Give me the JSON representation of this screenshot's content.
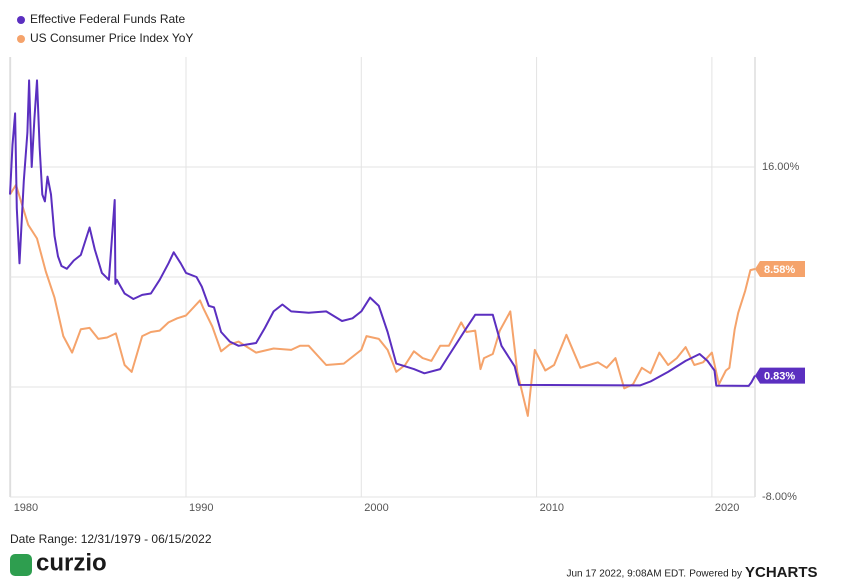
{
  "chart_data": {
    "type": "line",
    "xlim": [
      1979.96,
      2022.46
    ],
    "xticks": [
      1980,
      1990,
      2000,
      2010,
      2020
    ],
    "ylim": [
      -8,
      24
    ],
    "yticks": [
      {
        "value": 16,
        "label": "16.00%"
      },
      8,
      0,
      {
        "value": -8,
        "label": "-8.00%"
      }
    ],
    "grid": true,
    "legend": "top-left",
    "series": [
      {
        "name": "Effective Federal Funds Rate",
        "color": "#5b2fc0",
        "end_label": "0.83%",
        "x": [
          1979.96,
          1980.1,
          1980.25,
          1980.35,
          1980.5,
          1980.75,
          1980.95,
          1981.05,
          1981.2,
          1981.35,
          1981.5,
          1981.65,
          1981.8,
          1981.95,
          1982.1,
          1982.3,
          1982.5,
          1982.7,
          1982.9,
          1983.2,
          1983.6,
          1984.0,
          1984.5,
          1984.8,
          1985.2,
          1985.6,
          1985.93,
          1985.97,
          1986.05,
          1986.5,
          1987.0,
          1987.5,
          1988.0,
          1988.5,
          1989.0,
          1989.3,
          1989.7,
          1990.0,
          1990.6,
          1990.9,
          1991.3,
          1991.6,
          1992.0,
          1992.5,
          1993.0,
          1994.0,
          1994.5,
          1995.0,
          1995.5,
          1996.0,
          1997.0,
          1998.0,
          1998.9,
          1999.5,
          2000.0,
          2000.5,
          2001.0,
          2001.5,
          2002.0,
          2003.0,
          2003.6,
          2004.5,
          2005.0,
          2006.0,
          2006.5,
          2007.5,
          2008.0,
          2008.75,
          2009.0,
          2015.9,
          2016.5,
          2017.5,
          2018.5,
          2019.3,
          2019.75,
          2020.15,
          2020.25,
          2022.1,
          2022.25,
          2022.46
        ],
        "values": [
          14,
          17.6,
          19.9,
          13,
          9,
          15,
          18.5,
          22.3,
          16,
          19.5,
          22.3,
          17.5,
          14,
          13.5,
          15.3,
          14,
          11,
          9.5,
          8.8,
          8.6,
          9.2,
          9.6,
          11.6,
          10,
          8.3,
          7.8,
          13.6,
          7.5,
          7.8,
          6.8,
          6.4,
          6.7,
          6.8,
          7.8,
          9,
          9.8,
          9,
          8.3,
          8,
          7.3,
          5.9,
          5.8,
          4,
          3.3,
          3,
          3.2,
          4.3,
          5.5,
          6,
          5.5,
          5.4,
          5.5,
          4.8,
          5,
          5.5,
          6.5,
          5.9,
          4,
          1.7,
          1.3,
          1,
          1.3,
          2.3,
          4.3,
          5.25,
          5.25,
          3,
          1.5,
          0.15,
          0.12,
          0.4,
          1.1,
          1.9,
          2.4,
          1.9,
          1.2,
          0.1,
          0.08,
          0.33,
          0.83
        ]
      },
      {
        "name": "US Consumer Price Index YoY",
        "color": "#f5a36b",
        "end_label": "8.58%",
        "x": [
          1979.96,
          1980.3,
          1981.0,
          1981.5,
          1982.0,
          1982.5,
          1983.0,
          1983.5,
          1984.0,
          1984.5,
          1985.0,
          1985.5,
          1986.0,
          1986.5,
          1986.9,
          1987.5,
          1988.0,
          1988.5,
          1989.0,
          1989.5,
          1990.0,
          1990.8,
          1991.0,
          1991.5,
          1992.0,
          1992.5,
          1993.0,
          1994.0,
          1995.0,
          1996.0,
          1996.5,
          1997.0,
          1998.0,
          1999.0,
          2000.0,
          2000.3,
          2001.0,
          2001.5,
          2002.0,
          2002.5,
          2003.0,
          2003.5,
          2004.0,
          2004.5,
          2005.0,
          2005.7,
          2006.0,
          2006.5,
          2006.8,
          2007.0,
          2007.5,
          2007.9,
          2008.5,
          2008.9,
          2009.5,
          2009.9,
          2010.5,
          2011.0,
          2011.7,
          2012.5,
          2013.0,
          2013.5,
          2014.0,
          2014.5,
          2015.0,
          2015.5,
          2016.0,
          2016.5,
          2017.0,
          2017.5,
          2018.0,
          2018.5,
          2019.0,
          2019.5,
          2020.0,
          2020.4,
          2020.8,
          2021.0,
          2021.3,
          2021.5,
          2021.9,
          2022.2,
          2022.46
        ],
        "values": [
          14,
          14.7,
          11.8,
          10.8,
          8.4,
          6.5,
          3.7,
          2.5,
          4.2,
          4.3,
          3.5,
          3.6,
          3.9,
          1.6,
          1.1,
          3.7,
          4,
          4.1,
          4.7,
          5,
          5.2,
          6.3,
          5.7,
          4.4,
          2.6,
          3.1,
          3.3,
          2.5,
          2.8,
          2.7,
          3,
          3,
          1.6,
          1.7,
          2.7,
          3.7,
          3.5,
          2.7,
          1.1,
          1.6,
          2.6,
          2.1,
          1.9,
          3,
          3,
          4.7,
          4,
          4.1,
          1.3,
          2.1,
          2.4,
          4.1,
          5.5,
          1.1,
          -2.1,
          2.7,
          1.2,
          1.6,
          3.8,
          1.4,
          1.6,
          1.8,
          1.4,
          2.1,
          -0.1,
          0.2,
          1.4,
          1,
          2.5,
          1.6,
          2.1,
          2.9,
          1.6,
          1.8,
          2.5,
          0.2,
          1.2,
          1.4,
          4.2,
          5.4,
          7,
          8.5,
          8.58
        ]
      }
    ]
  },
  "footer": {
    "date_range": "Date Range: 12/31/1979 - 06/15/2022",
    "logo": "curzio",
    "timestamp": "Jun 17 2022, 9:08AM EDT.",
    "powered_by": "Powered by",
    "brand": "YCHARTS"
  }
}
